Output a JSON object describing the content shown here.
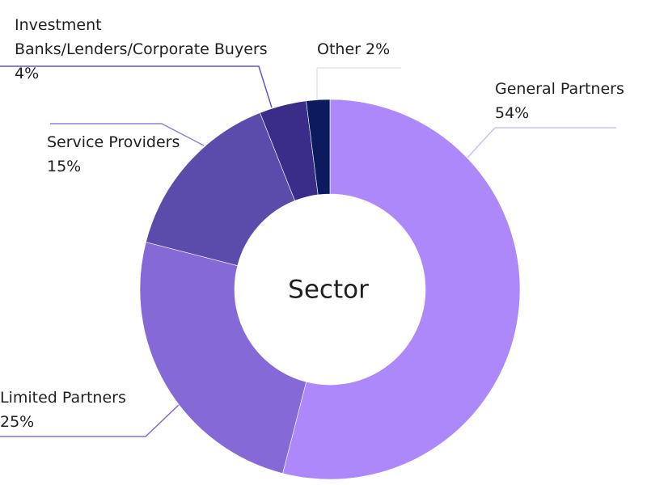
{
  "chart_data": {
    "type": "donut",
    "title": "Sector",
    "categories": [
      "General Partners",
      "Limited Partners",
      "Service Providers",
      "Investment Banks/Lenders/Corporate Buyers",
      "Other"
    ],
    "values": [
      54,
      25,
      15,
      4,
      2
    ],
    "value_labels": [
      "54%",
      "25%",
      "15%",
      "4%",
      "2%"
    ],
    "colors": [
      "#ad88fa",
      "#8569d6",
      "#5b4bab",
      "#3a2d8a",
      "#0c1a5e"
    ]
  }
}
